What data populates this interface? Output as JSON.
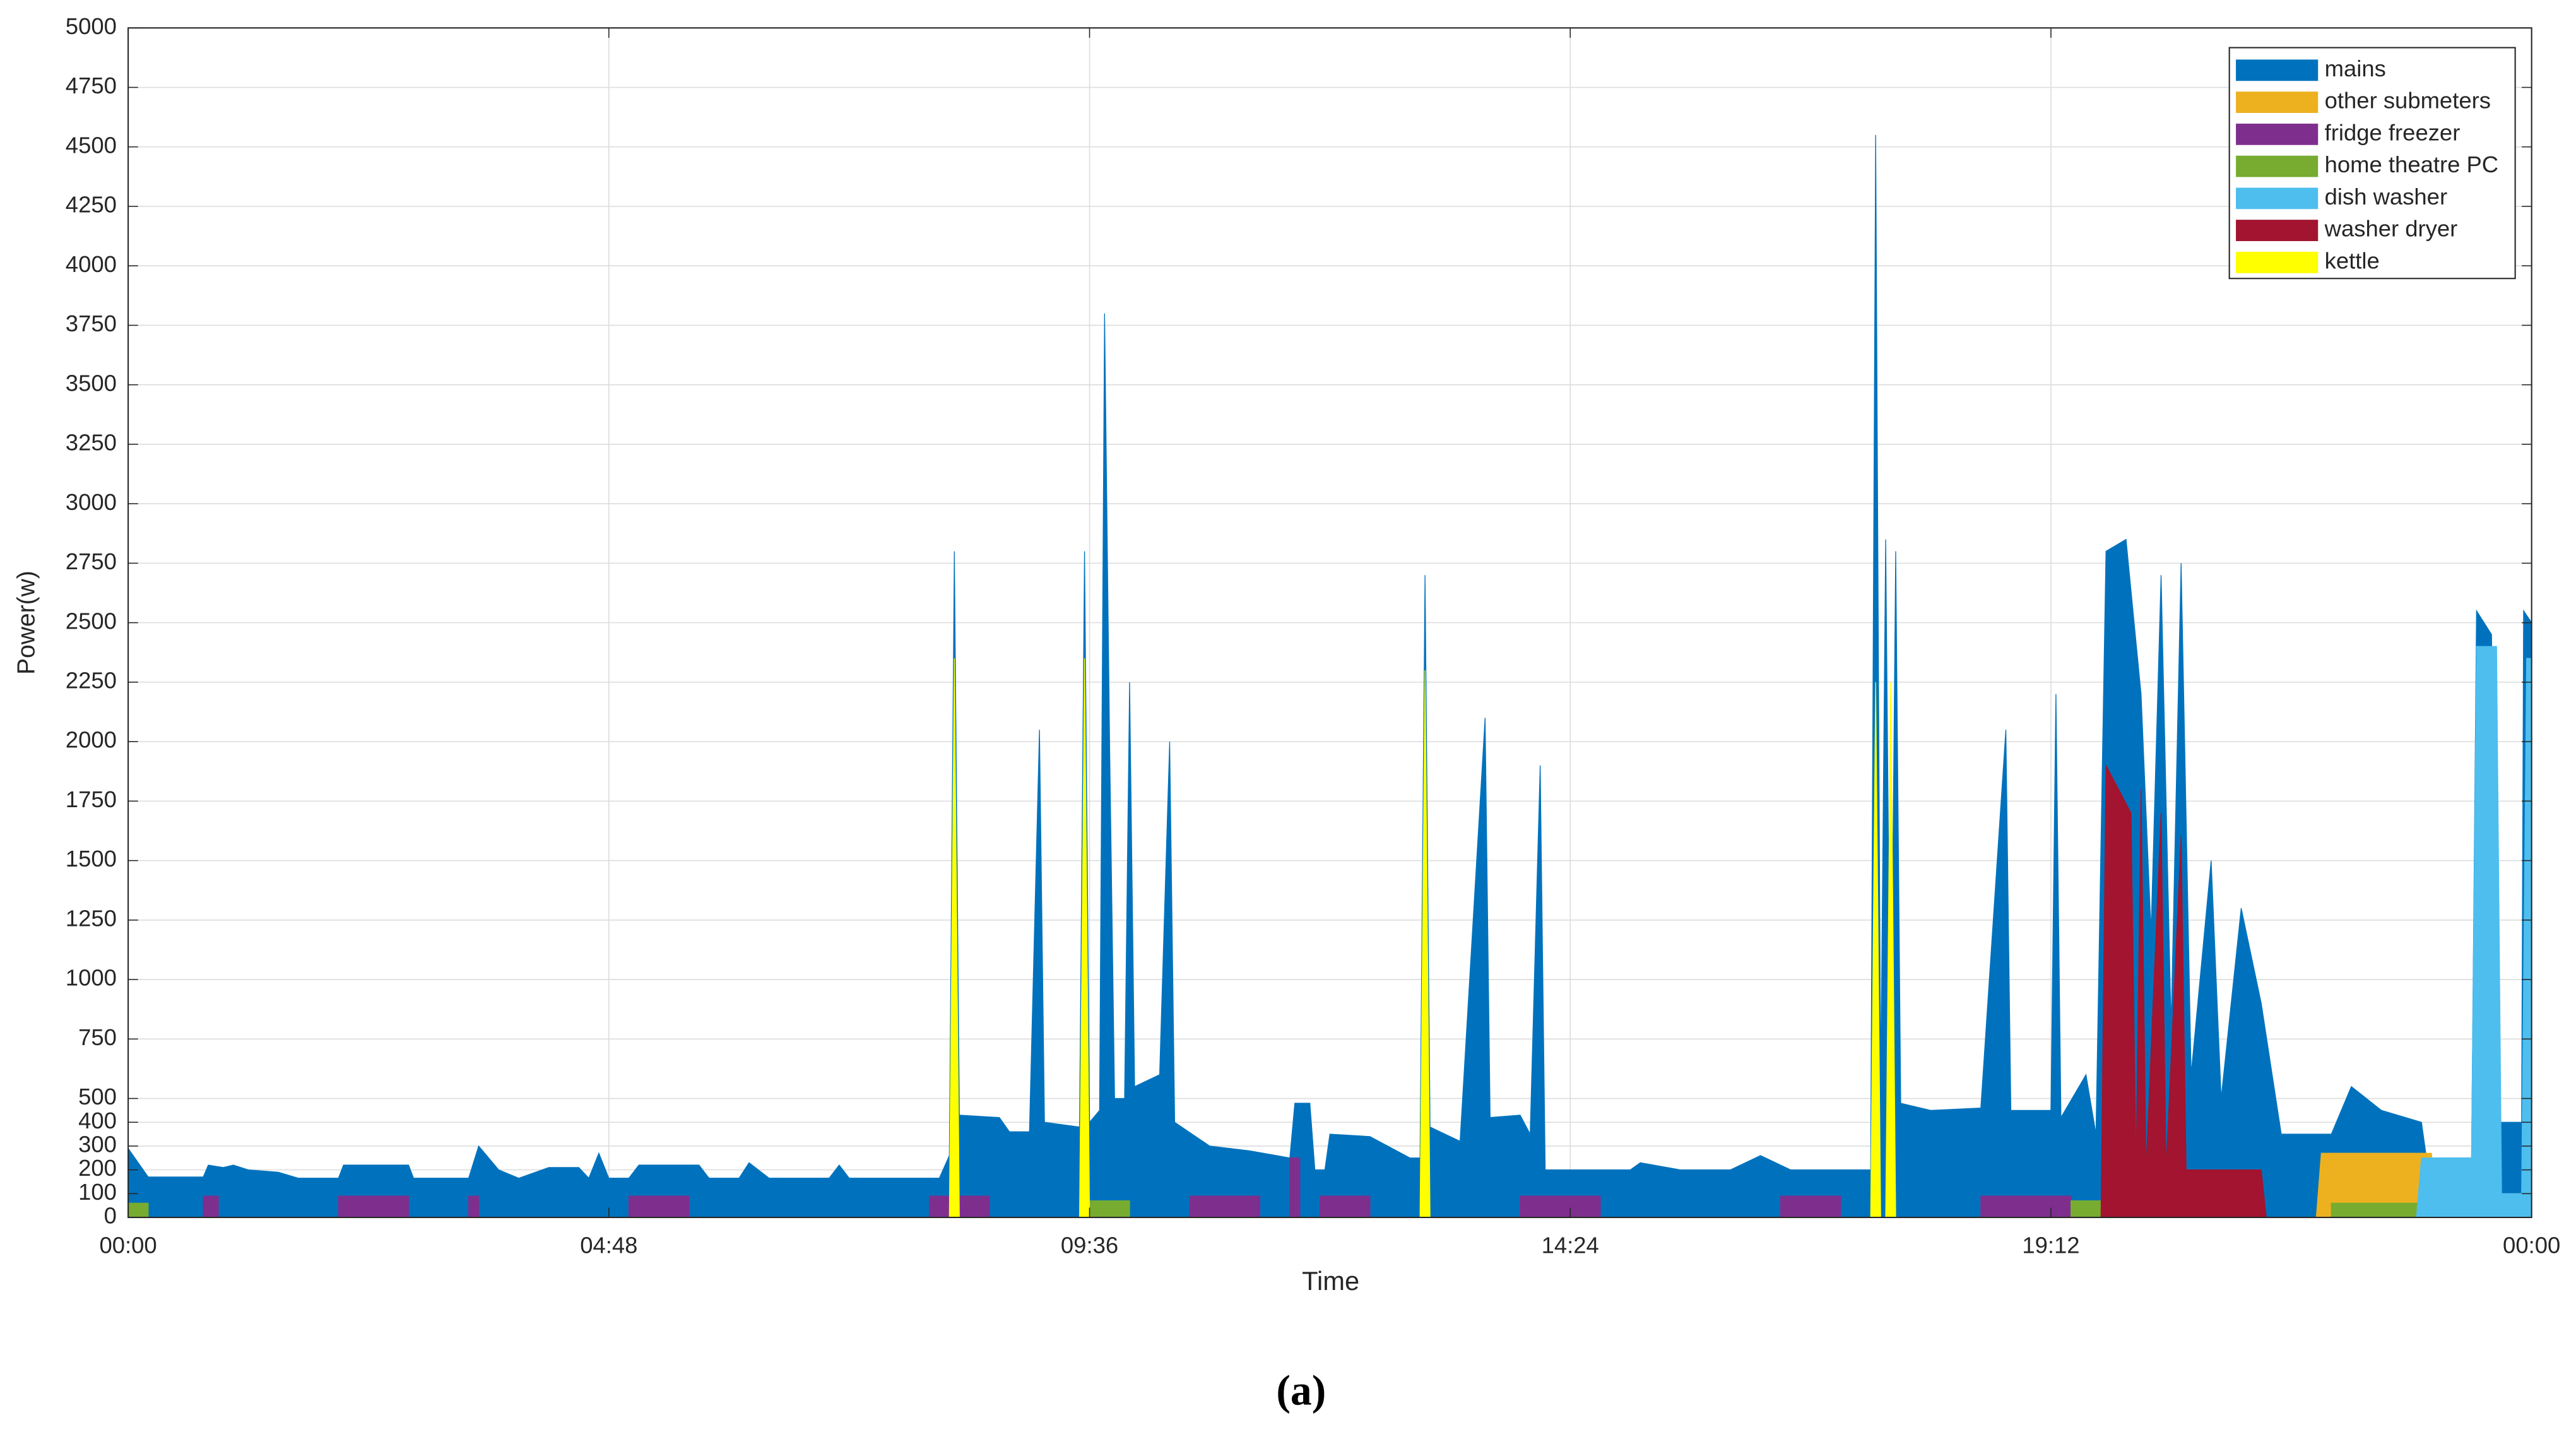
{
  "chart_data": {
    "type": "area",
    "xlabel": "Time",
    "ylabel": "Power(w)",
    "caption": "(a)",
    "xlim": [
      0,
      24
    ],
    "xticks": [
      {
        "value": 0,
        "label": "00:00"
      },
      {
        "value": 4.8,
        "label": "04:48"
      },
      {
        "value": 9.6,
        "label": "09:36"
      },
      {
        "value": 14.4,
        "label": "14:24"
      },
      {
        "value": 19.2,
        "label": "19:12"
      },
      {
        "value": 24,
        "label": "00:00"
      }
    ],
    "ylim": [
      0,
      5000
    ],
    "yticks": [
      0,
      100,
      200,
      300,
      400,
      500,
      750,
      1000,
      1250,
      1500,
      1750,
      2000,
      2250,
      2500,
      2750,
      3000,
      3250,
      3500,
      3750,
      4000,
      4250,
      4500,
      4750,
      5000
    ],
    "grid": true,
    "legend": "northeast",
    "series": [
      {
        "name": "mains",
        "color": "#0072bd",
        "x": [
          0,
          0.2,
          0.75,
          0.8,
          0.95,
          1.05,
          1.2,
          1.5,
          1.7,
          2.1,
          2.15,
          2.8,
          2.85,
          3.4,
          3.5,
          3.7,
          3.9,
          4.2,
          4.5,
          4.6,
          4.7,
          4.8,
          5.0,
          5.1,
          5.7,
          5.8,
          6.1,
          6.2,
          6.4,
          7.0,
          7.1,
          7.2,
          8.1,
          8.2,
          8.25,
          8.3,
          8.7,
          8.8,
          9.0,
          9.1,
          9.15,
          9.5,
          9.55,
          9.6,
          9.7,
          9.75,
          9.8,
          9.85,
          9.95,
          10.0,
          10.05,
          10.3,
          10.4,
          10.45,
          10.8,
          11.2,
          11.6,
          11.65,
          11.8,
          11.85,
          11.95,
          12.0,
          12.4,
          12.8,
          12.9,
          12.95,
          13.0,
          13.3,
          13.55,
          13.6,
          13.9,
          14.0,
          14.1,
          14.15,
          15.0,
          15.1,
          15.5,
          16.0,
          16.3,
          16.6,
          17.4,
          17.45,
          17.5,
          17.55,
          17.6,
          17.65,
          17.7,
          18.0,
          18.5,
          18.75,
          18.8,
          19.2,
          19.25,
          19.3,
          19.55,
          19.65,
          19.75,
          19.95,
          20.1,
          20.2,
          20.3,
          20.4,
          20.5,
          20.6,
          20.8,
          20.9,
          21.1,
          21.3,
          21.5,
          22.0,
          22.2,
          22.5,
          22.9,
          22.95,
          23.4,
          23.45,
          23.6,
          23.65,
          23.7,
          23.9,
          23.92,
          24
        ],
        "values": [
          290,
          170,
          170,
          220,
          210,
          220,
          200,
          190,
          165,
          165,
          220,
          220,
          165,
          165,
          300,
          200,
          165,
          210,
          210,
          165,
          270,
          165,
          165,
          220,
          220,
          165,
          165,
          230,
          165,
          165,
          220,
          165,
          165,
          260,
          2800,
          430,
          420,
          360,
          360,
          2050,
          400,
          380,
          2800,
          400,
          450,
          3800,
          2000,
          500,
          500,
          2250,
          550,
          600,
          2000,
          400,
          300,
          280,
          250,
          480,
          480,
          200,
          200,
          350,
          340,
          250,
          250,
          2700,
          380,
          320,
          2100,
          420,
          430,
          350,
          1900,
          200,
          200,
          230,
          200,
          200,
          260,
          200,
          200,
          4550,
          550,
          2850,
          500,
          2800,
          480,
          450,
          460,
          2050,
          450,
          450,
          2200,
          420,
          600,
          350,
          2800,
          2850,
          2200,
          1200,
          2700,
          800,
          2750,
          600,
          1500,
          500,
          1300,
          900,
          350,
          350,
          550,
          450,
          400,
          250,
          250,
          2550,
          2450,
          120,
          400,
          400,
          2550,
          2500
        ]
      },
      {
        "name": "other submeters",
        "color": "#edb120",
        "x": [
          0,
          21.85,
          21.9,
          23.0,
          23.05,
          24
        ],
        "values": [
          0,
          0,
          270,
          270,
          0,
          0
        ]
      },
      {
        "name": "fridge freezer",
        "color": "#7e2f8e",
        "x": [
          0.75,
          0.75,
          0.9,
          0.9,
          2.1,
          2.1,
          2.8,
          2.8,
          3.4,
          3.4,
          3.5,
          3.5,
          5.0,
          5.0,
          5.6,
          5.6,
          8.0,
          8.0,
          8.6,
          8.6,
          10.6,
          10.6,
          11.3,
          11.3,
          11.6,
          11.6,
          11.7,
          11.7,
          11.9,
          11.9,
          12.4,
          12.4,
          13.9,
          13.9,
          14.7,
          14.7,
          16.5,
          16.5,
          17.1,
          17.1,
          18.5,
          18.5,
          19.4,
          19.4
        ],
        "values": [
          0,
          90,
          90,
          0,
          0,
          90,
          90,
          0,
          0,
          90,
          90,
          0,
          0,
          90,
          90,
          0,
          0,
          90,
          90,
          0,
          0,
          90,
          90,
          0,
          0,
          250,
          250,
          0,
          0,
          90,
          90,
          0,
          0,
          90,
          90,
          0,
          0,
          90,
          90,
          0,
          0,
          90,
          90,
          0
        ]
      },
      {
        "name": "home theatre PC",
        "color": "#77ac30",
        "x": [
          0,
          0.2,
          0.2,
          9.6,
          9.6,
          10.0,
          10.0,
          19.4,
          19.4,
          19.7,
          19.7,
          22.0,
          22.0,
          23.1,
          23.1
        ],
        "values": [
          60,
          60,
          0,
          0,
          70,
          70,
          0,
          0,
          70,
          70,
          0,
          0,
          60,
          60,
          0
        ]
      },
      {
        "name": "dish washer",
        "color": "#4dbeee",
        "x": [
          22.85,
          22.9,
          23.4,
          23.45,
          23.65,
          23.7,
          23.9,
          23.95,
          24
        ],
        "values": [
          0,
          250,
          250,
          2400,
          2400,
          100,
          100,
          2350,
          2350
        ]
      },
      {
        "name": "washer dryer",
        "color": "#a2142f",
        "x": [
          19.7,
          19.75,
          20.0,
          20.05,
          20.1,
          20.15,
          20.3,
          20.35,
          20.5,
          20.55,
          21.3,
          21.35
        ],
        "values": [
          0,
          1900,
          1700,
          200,
          1800,
          200,
          1700,
          200,
          1600,
          200,
          200,
          0
        ]
      },
      {
        "name": "kettle",
        "color": "#ffff00",
        "x": [
          8.2,
          8.25,
          8.3,
          9.5,
          9.55,
          9.6,
          12.9,
          12.95,
          13.0,
          17.4,
          17.45,
          17.5,
          17.55,
          17.6,
          17.65
        ],
        "values": [
          0,
          2350,
          0,
          0,
          2350,
          0,
          0,
          2300,
          0,
          0,
          2250,
          0,
          0,
          2250,
          0
        ]
      }
    ]
  }
}
